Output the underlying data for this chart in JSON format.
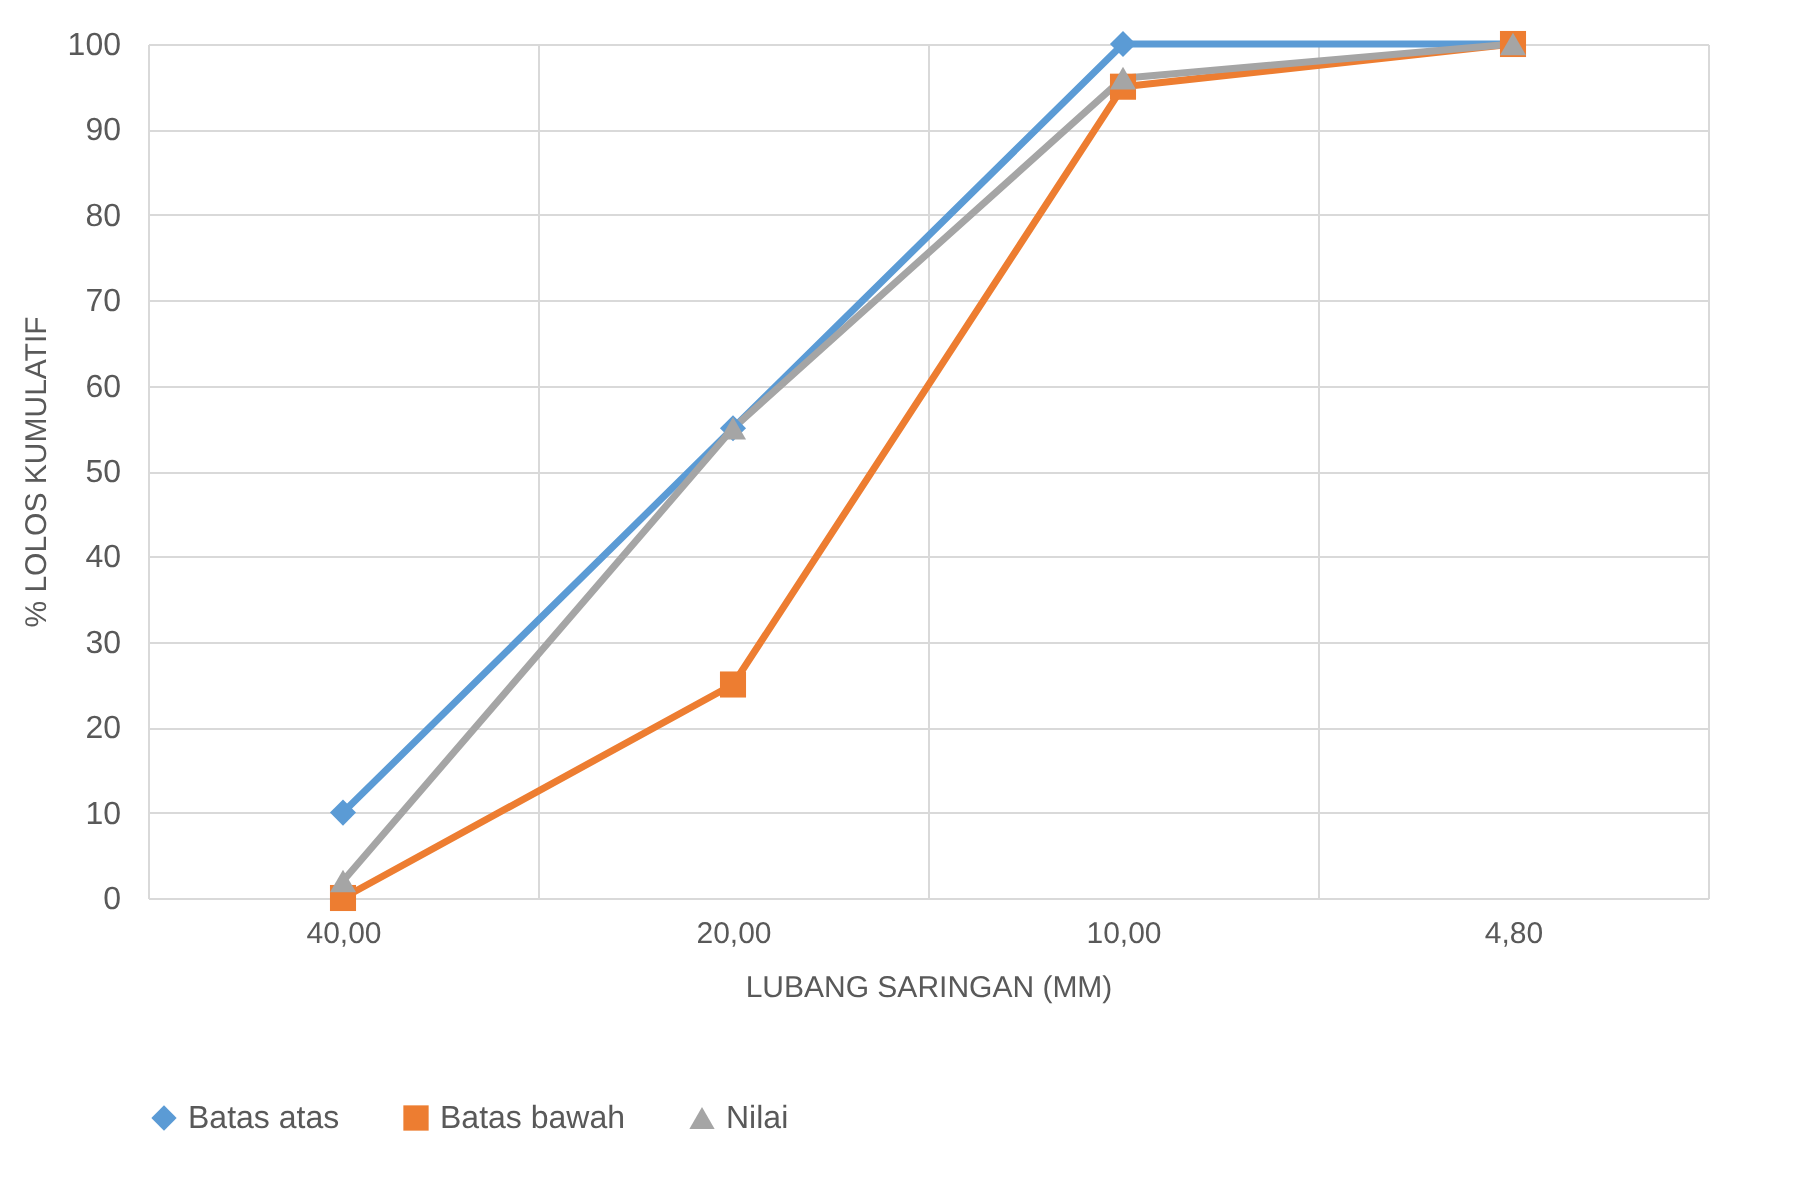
{
  "chart_data": {
    "type": "line",
    "xlabel": "LUBANG SARINGAN (MM)",
    "ylabel": "% LOLOS KUMULATIF",
    "categories": [
      "40,00",
      "20,00",
      "10,00",
      "4,80"
    ],
    "series": [
      {
        "name": "Batas atas",
        "color": "#5b9bd5",
        "marker": "diamond",
        "values": [
          10,
          55,
          100,
          100
        ]
      },
      {
        "name": "Batas bawah",
        "color": "#ed7d31",
        "marker": "square",
        "values": [
          0,
          25,
          95,
          100
        ]
      },
      {
        "name": "Nilai",
        "color": "#a5a5a5",
        "marker": "triangle",
        "values": [
          2,
          55,
          96,
          100
        ]
      }
    ],
    "ylim": [
      0,
      100
    ],
    "yticks": [
      0,
      10,
      20,
      30,
      40,
      50,
      60,
      70,
      80,
      90,
      100
    ],
    "grid": true,
    "legend": "bottom"
  }
}
